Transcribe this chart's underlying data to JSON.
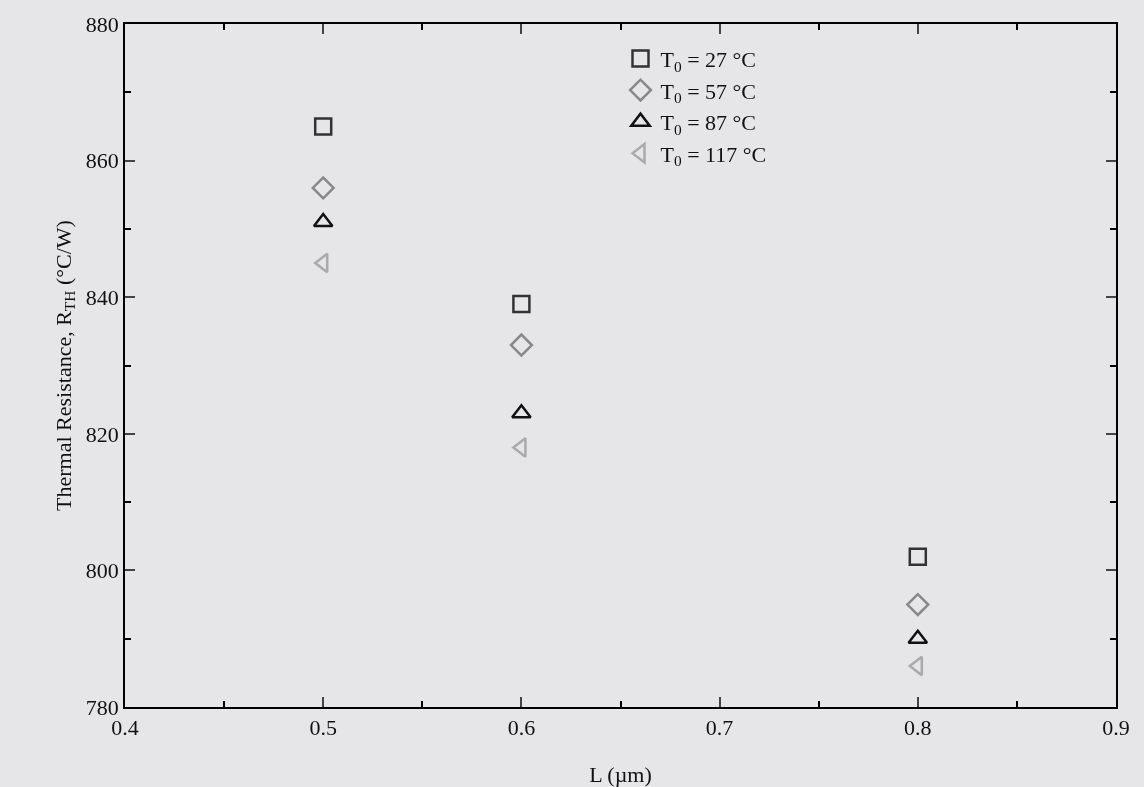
{
  "chart_data": {
    "type": "scatter",
    "xlabel": "L (µm)",
    "ylabel": "Thermal Resistance, R$_{TH}$ (°C/W)",
    "x": [
      0.5,
      0.6,
      0.8
    ],
    "series": [
      {
        "name": "T$_{0}$ = 27 °C",
        "color": "#333333",
        "marker": "square",
        "values": [
          865,
          839,
          802
        ]
      },
      {
        "name": "T$_{0}$ = 57 °C",
        "color": "#888888",
        "marker": "diamond",
        "values": [
          856,
          833,
          795
        ]
      },
      {
        "name": "T$_{0}$ = 87 °C",
        "color": "#111111",
        "marker": "triangle",
        "values": [
          851,
          823,
          790
        ]
      },
      {
        "name": "T$_{0}$ = 117 °C",
        "color": "#aaaaaa",
        "marker": "triangle-left",
        "values": [
          845,
          818,
          786
        ]
      }
    ],
    "xlim": [
      0.4,
      0.9
    ],
    "xticks": [
      0.4,
      0.5,
      0.6,
      0.7,
      0.8,
      0.9
    ],
    "ylim": [
      780,
      880
    ],
    "yticks": [
      780,
      800,
      820,
      840,
      860,
      880
    ],
    "grid": false,
    "legend": "top"
  }
}
